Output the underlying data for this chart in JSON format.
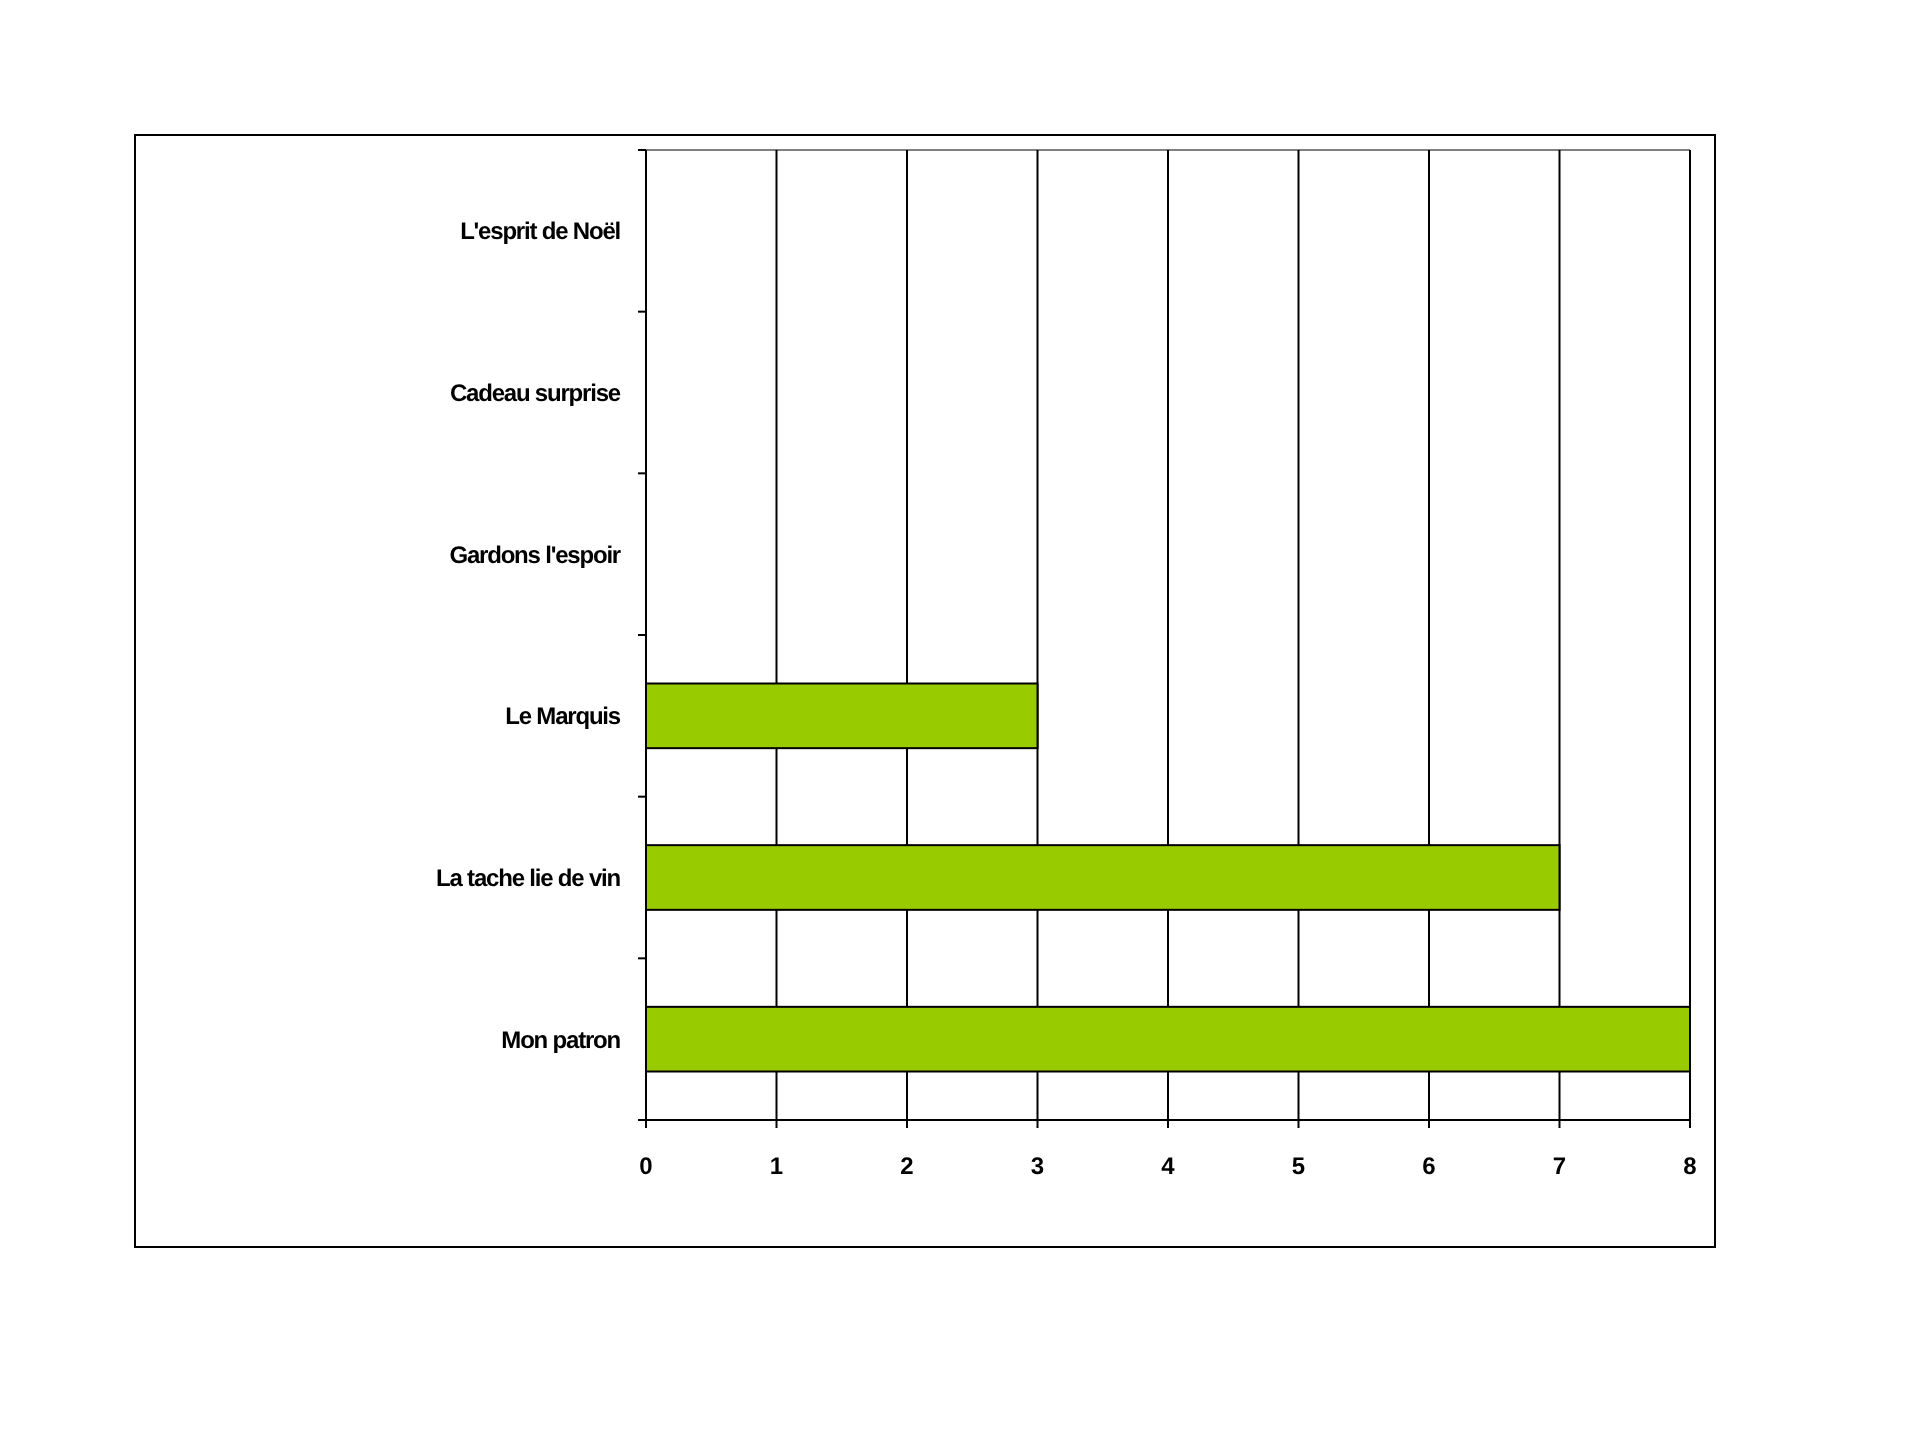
{
  "chart_data": {
    "type": "bar",
    "orientation": "horizontal",
    "categories": [
      "L'esprit de Noël",
      "Cadeau surprise",
      "Gardons l'espoir",
      "Le Marquis",
      "La tache lie de vin",
      "Mon patron"
    ],
    "values": [
      0,
      0,
      0,
      3,
      7,
      8
    ],
    "color": "#99cc00",
    "xlim": [
      0,
      8
    ],
    "xticks": [
      0,
      1,
      2,
      3,
      4,
      5,
      6,
      7,
      8
    ],
    "grid": "x"
  }
}
